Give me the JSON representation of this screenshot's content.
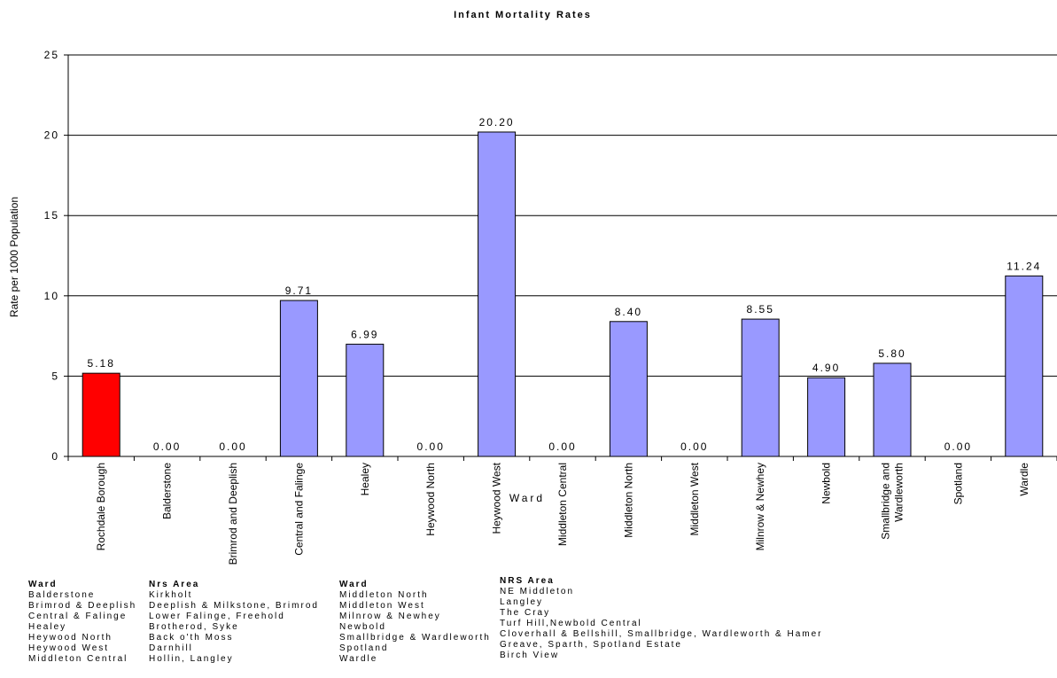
{
  "chart_data": {
    "type": "bar",
    "title": "Infant Mortality Rates",
    "xlabel": "Ward",
    "ylabel": "Rate per 1000 Population",
    "ylim": [
      0,
      25
    ],
    "yticks": [
      0,
      5,
      10,
      15,
      20,
      25
    ],
    "grid": true,
    "categories": [
      "Rochdale Borough",
      "Balderstone",
      "Brimrod and Deeplish",
      "Central and Falinge",
      "Healey",
      "Heywood North",
      "Heywood West",
      "Middleton Central",
      "Middleton North",
      "Middleton West",
      "Milnrow & Newhey",
      "Newbold",
      "Smallbridge and Wardleworth",
      "Spotland",
      "Wardle"
    ],
    "values": [
      5.18,
      0.0,
      0.0,
      9.71,
      6.99,
      0.0,
      20.2,
      0.0,
      8.4,
      0.0,
      8.55,
      4.9,
      5.8,
      0.0,
      11.24
    ],
    "value_labels": [
      "5.18",
      "0.00",
      "0.00",
      "9.71",
      "6.99",
      "0.00",
      "20.20",
      "0.00",
      "8.40",
      "0.00",
      "8.55",
      "4.90",
      "5.80",
      "0.00",
      "11.24"
    ],
    "colors": {
      "highlight": "#ff0000",
      "bar": "#9999ff",
      "edge": "#000000",
      "grid": "#000000"
    },
    "highlight_index": 0
  },
  "legend_table": {
    "left": {
      "header_ward": "Ward",
      "header_area": "Nrs Area",
      "rows": [
        {
          "ward": "Balderstone",
          "area": "Kirkholt"
        },
        {
          "ward": "Brimrod & Deeplish",
          "area": "Deeplish & Milkstone, Brimrod"
        },
        {
          "ward": "Central & Falinge",
          "area": "Lower Falinge, Freehold"
        },
        {
          "ward": "Healey",
          "area": "Brotherod, Syke"
        },
        {
          "ward": "Heywood North",
          "area": "Back o'th Moss"
        },
        {
          "ward": "Heywood West",
          "area": "Darnhill"
        },
        {
          "ward": "Middleton Central",
          "area": "Hollin, Langley"
        }
      ]
    },
    "right": {
      "header_ward": "Ward",
      "header_area": "NRS Area",
      "rows": [
        {
          "ward": "Middleton North",
          "area": "NE Middleton"
        },
        {
          "ward": "Middleton West",
          "area": "Langley"
        },
        {
          "ward": "Milnrow & Newhey",
          "area": "The Cray"
        },
        {
          "ward": "Newbold",
          "area": "Turf Hill,Newbold Central"
        },
        {
          "ward": "Smallbridge & Wardleworth",
          "area": "Cloverhall & Bellshill, Smallbridge, Wardleworth & Hamer"
        },
        {
          "ward": "Spotland",
          "area": "Greave, Sparth, Spotland Estate"
        },
        {
          "ward": "Wardle",
          "area": "Birch View"
        }
      ]
    }
  }
}
